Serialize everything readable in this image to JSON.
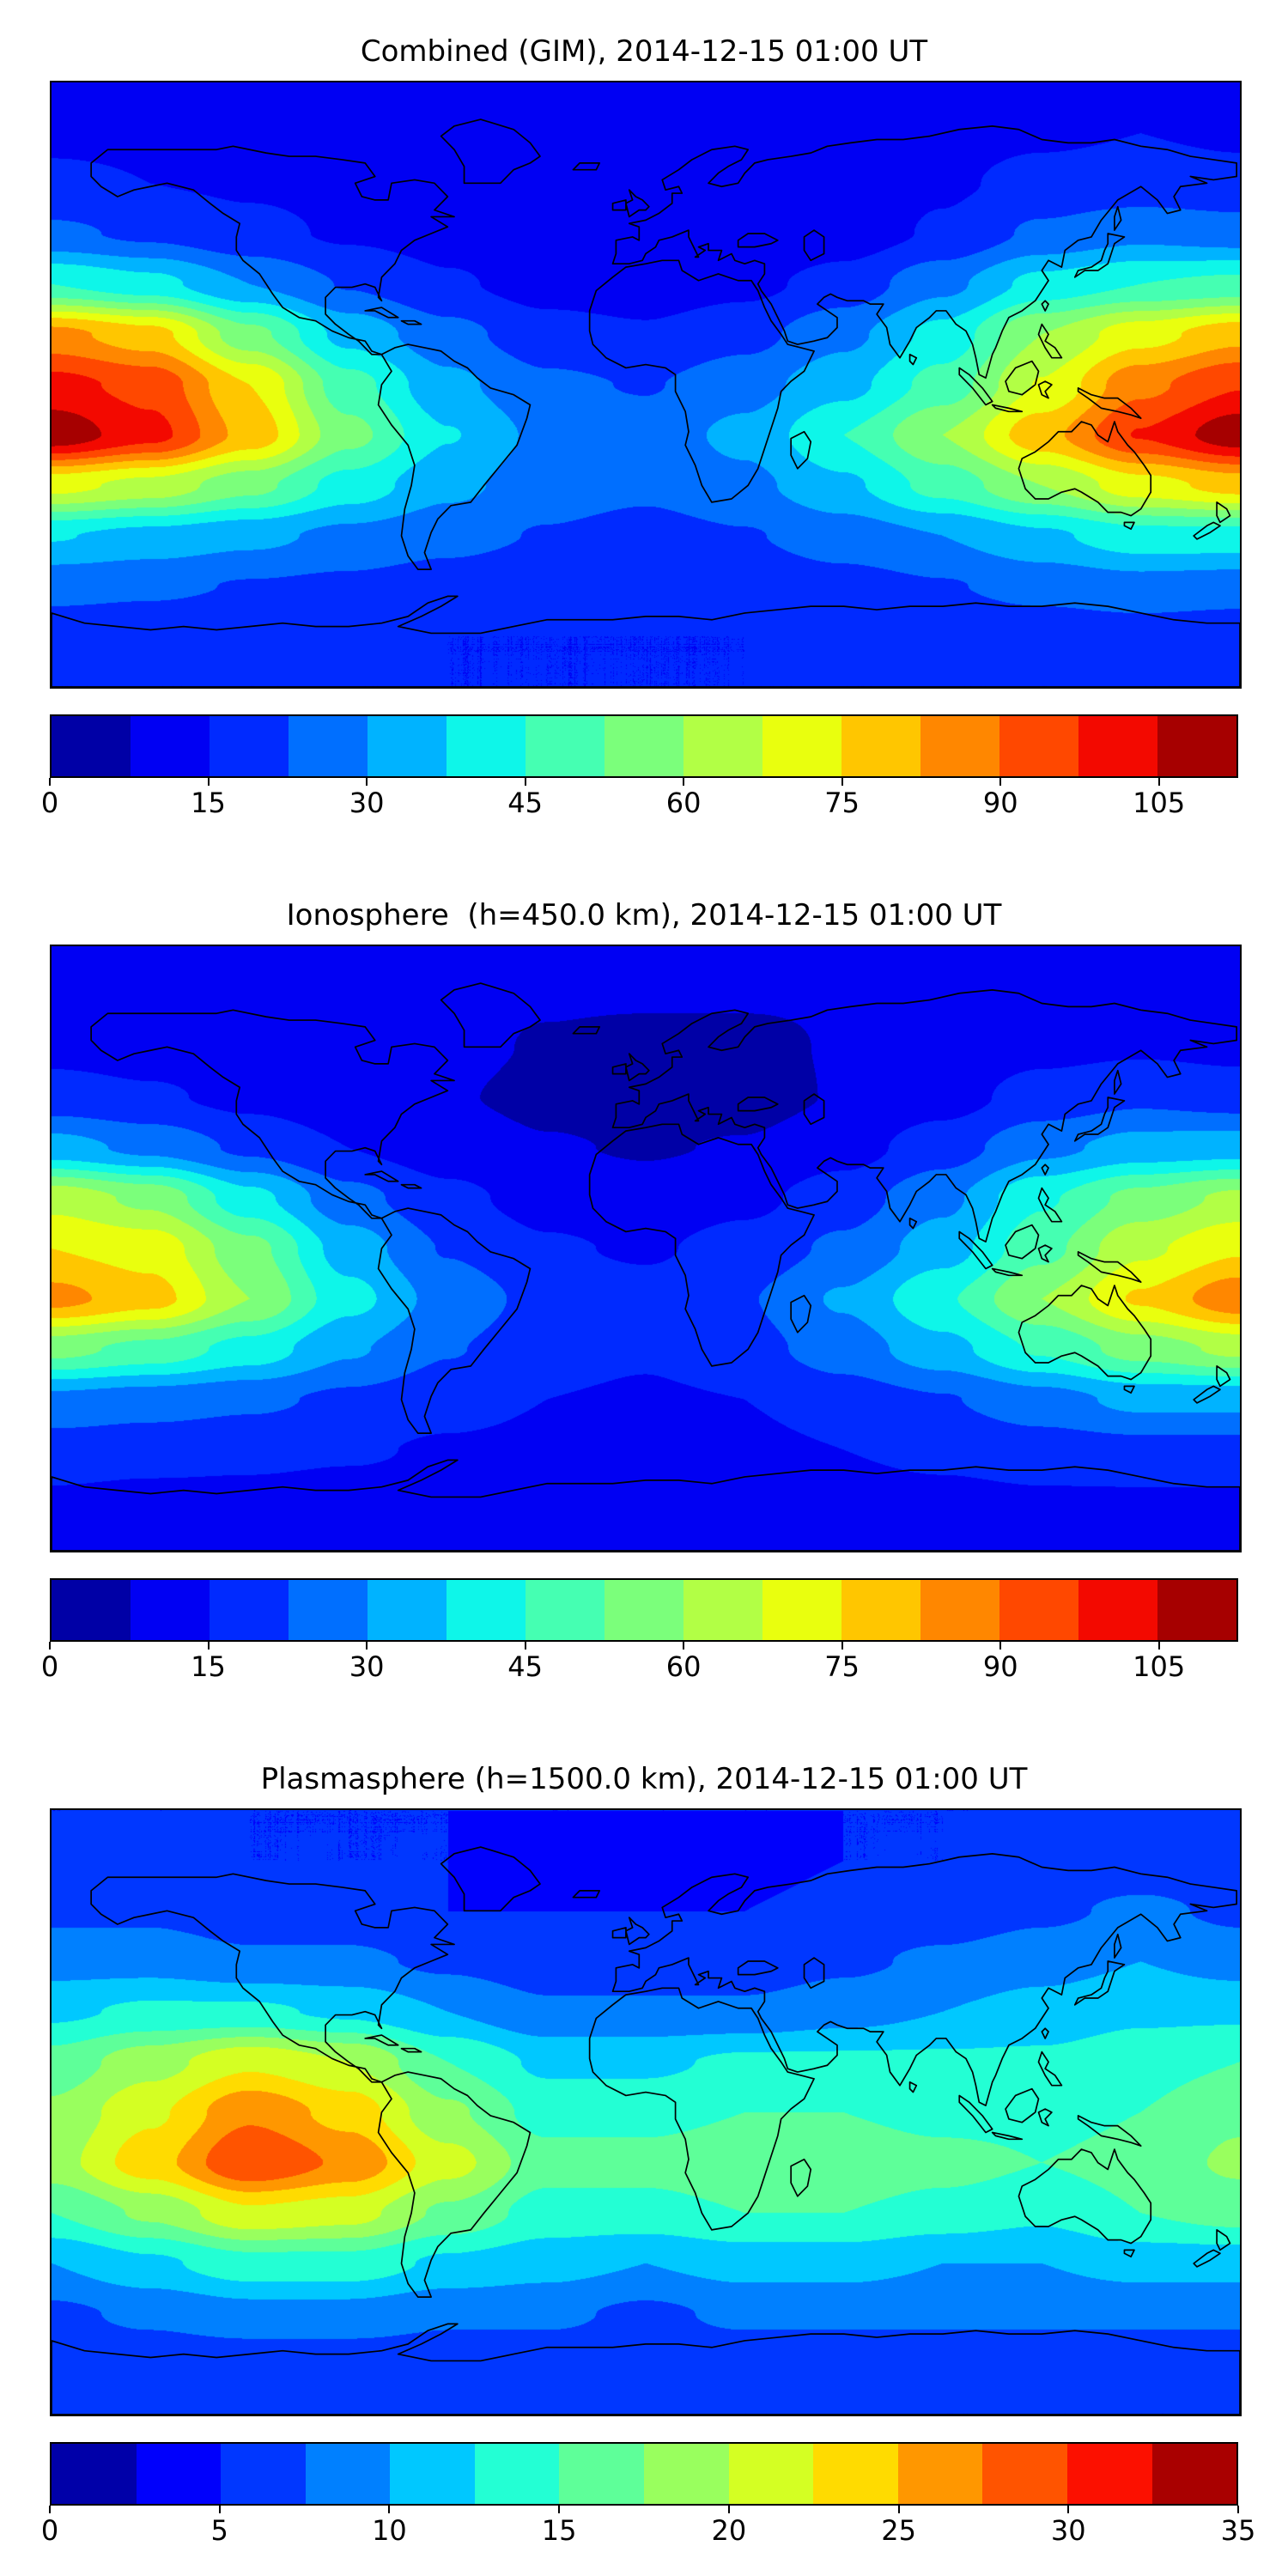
{
  "figure": {
    "background": "#ffffff",
    "coastline_color": "#000000",
    "panel_count": 3
  },
  "chart_data": [
    {
      "type": "heatmap",
      "title": "Combined (GIM), 2014-12-15 01:00 UT",
      "projection": "equirectangular",
      "colormap": "jet",
      "lon_range": [
        -180,
        180
      ],
      "lat_range": [
        -90,
        90
      ],
      "levels_min": 0,
      "levels_max": 112.5,
      "levels_step": 7.5,
      "colorbar_ticks": [
        0,
        15,
        30,
        45,
        60,
        75,
        90,
        105
      ],
      "lon": [
        -180,
        -150,
        -120,
        -90,
        -60,
        -30,
        0,
        30,
        60,
        90,
        120,
        150,
        180
      ],
      "lat": [
        90,
        75,
        60,
        45,
        30,
        15,
        0,
        -15,
        -30,
        -45,
        -60,
        -75,
        -90
      ],
      "values": [
        [
          13,
          13,
          13,
          13,
          13,
          12,
          12,
          12,
          12,
          13,
          13,
          13,
          13
        ],
        [
          14,
          14,
          13,
          13,
          12,
          11,
          10,
          10,
          11,
          13,
          14,
          15,
          14
        ],
        [
          16,
          15,
          14,
          13,
          12,
          10,
          9,
          9,
          11,
          14,
          17,
          18,
          17
        ],
        [
          24,
          21,
          17,
          14,
          12,
          9,
          8,
          8,
          11,
          16,
          24,
          28,
          26
        ],
        [
          45,
          40,
          30,
          22,
          16,
          12,
          11,
          13,
          18,
          28,
          40,
          45,
          47
        ],
        [
          85,
          78,
          55,
          35,
          25,
          18,
          16,
          20,
          28,
          40,
          60,
          72,
          80
        ],
        [
          100,
          95,
          75,
          48,
          32,
          24,
          22,
          27,
          35,
          48,
          68,
          88,
          97
        ],
        [
          110,
          100,
          80,
          55,
          38,
          28,
          26,
          32,
          45,
          60,
          80,
          98,
          110
        ],
        [
          70,
          65,
          55,
          42,
          32,
          26,
          24,
          28,
          36,
          48,
          60,
          72,
          78
        ],
        [
          38,
          35,
          32,
          28,
          25,
          22,
          20,
          22,
          26,
          30,
          36,
          42,
          42
        ],
        [
          25,
          24,
          22,
          21,
          19,
          17,
          17,
          18,
          20,
          22,
          25,
          27,
          26
        ],
        [
          18,
          17,
          16,
          16,
          15,
          15,
          15,
          15,
          16,
          17,
          18,
          19,
          18
        ],
        [
          15,
          15,
          15,
          15,
          15,
          15,
          15,
          15,
          15,
          15,
          15,
          15,
          15
        ]
      ]
    },
    {
      "type": "heatmap",
      "title": "Ionosphere  (h=450.0 km), 2014-12-15 01:00 UT",
      "projection": "equirectangular",
      "colormap": "jet",
      "lon_range": [
        -180,
        180
      ],
      "lat_range": [
        -90,
        90
      ],
      "levels_min": 0,
      "levels_max": 112.5,
      "levels_step": 7.5,
      "colorbar_ticks": [
        0,
        15,
        30,
        45,
        60,
        75,
        90,
        105
      ],
      "lon": [
        -180,
        -150,
        -120,
        -90,
        -60,
        -30,
        0,
        30,
        60,
        90,
        120,
        150,
        180
      ],
      "lat": [
        90,
        75,
        60,
        45,
        30,
        15,
        0,
        -15,
        -30,
        -45,
        -60,
        -75,
        -90
      ],
      "values": [
        [
          10,
          10,
          10,
          10,
          9,
          9,
          9,
          9,
          9,
          10,
          10,
          10,
          10
        ],
        [
          11,
          11,
          10,
          10,
          9,
          8,
          8,
          8,
          8,
          10,
          11,
          11,
          11
        ],
        [
          13,
          12,
          11,
          10,
          9,
          7,
          6,
          6,
          8,
          10,
          13,
          14,
          13
        ],
        [
          18,
          16,
          13,
          10,
          8,
          6,
          5,
          5,
          8,
          12,
          18,
          21,
          19
        ],
        [
          33,
          28,
          21,
          15,
          11,
          8,
          7,
          8,
          12,
          19,
          28,
          33,
          34
        ],
        [
          65,
          58,
          40,
          25,
          17,
          12,
          10,
          13,
          19,
          28,
          44,
          55,
          62
        ],
        [
          75,
          72,
          55,
          34,
          22,
          16,
          14,
          18,
          24,
          34,
          50,
          66,
          74
        ],
        [
          85,
          78,
          60,
          40,
          27,
          20,
          18,
          22,
          31,
          44,
          60,
          76,
          88
        ],
        [
          55,
          50,
          42,
          31,
          23,
          18,
          16,
          20,
          26,
          35,
          46,
          56,
          62
        ],
        [
          28,
          26,
          24,
          21,
          18,
          15,
          14,
          15,
          19,
          22,
          27,
          32,
          32
        ],
        [
          19,
          18,
          17,
          16,
          14,
          13,
          12,
          13,
          15,
          17,
          19,
          20,
          20
        ],
        [
          14,
          13,
          13,
          12,
          12,
          11,
          11,
          11,
          12,
          13,
          14,
          14,
          14
        ],
        [
          12,
          12,
          12,
          12,
          12,
          12,
          12,
          12,
          12,
          12,
          12,
          12,
          12
        ]
      ]
    },
    {
      "type": "heatmap",
      "title": "Plasmasphere (h=1500.0 km), 2014-12-15 01:00 UT",
      "projection": "equirectangular",
      "colormap": "jet",
      "lon_range": [
        -180,
        180
      ],
      "lat_range": [
        -90,
        90
      ],
      "levels_min": 0,
      "levels_max": 35,
      "levels_step": 2.5,
      "colorbar_ticks": [
        0,
        5,
        10,
        15,
        20,
        25,
        30,
        35
      ],
      "lon": [
        -180,
        -150,
        -120,
        -90,
        -60,
        -30,
        0,
        30,
        60,
        90,
        120,
        150,
        180
      ],
      "lat": [
        90,
        75,
        60,
        45,
        30,
        15,
        0,
        -15,
        -30,
        -45,
        -60,
        -75,
        -90
      ],
      "values": [
        [
          5,
          5,
          5,
          5,
          5,
          5,
          5,
          5,
          5,
          5,
          5,
          6,
          5
        ],
        [
          6,
          6,
          5,
          5,
          5,
          4,
          4,
          4,
          5,
          5,
          6,
          6,
          6
        ],
        [
          7,
          7,
          6,
          6,
          5,
          5,
          5,
          5,
          6,
          6,
          7,
          8,
          7
        ],
        [
          9,
          9,
          8,
          8,
          7,
          6,
          6,
          6,
          7,
          8,
          9,
          10,
          9
        ],
        [
          12,
          13,
          13,
          12,
          10,
          8,
          8,
          8,
          9,
          10,
          11,
          12,
          12
        ],
        [
          16,
          19,
          22,
          20,
          15,
          12,
          12,
          13,
          13,
          13,
          13,
          14,
          15
        ],
        [
          18,
          22,
          27,
          24,
          18,
          14,
          14,
          15,
          15,
          14,
          14,
          15,
          17
        ],
        [
          19,
          24,
          30,
          27,
          21,
          16,
          16,
          17,
          17,
          16,
          15,
          16,
          18
        ],
        [
          15,
          18,
          22,
          21,
          17,
          14,
          14,
          15,
          15,
          14,
          13,
          15,
          16
        ],
        [
          10,
          12,
          14,
          14,
          12,
          11,
          10,
          11,
          11,
          10,
          10,
          11,
          11
        ],
        [
          7,
          8,
          9,
          9,
          8,
          8,
          7,
          8,
          8,
          8,
          8,
          8,
          8
        ],
        [
          6,
          6,
          6,
          6,
          6,
          6,
          6,
          6,
          6,
          6,
          6,
          6,
          6
        ],
        [
          5,
          5,
          5,
          5,
          5,
          5,
          5,
          5,
          5,
          5,
          5,
          5,
          5
        ]
      ]
    }
  ]
}
